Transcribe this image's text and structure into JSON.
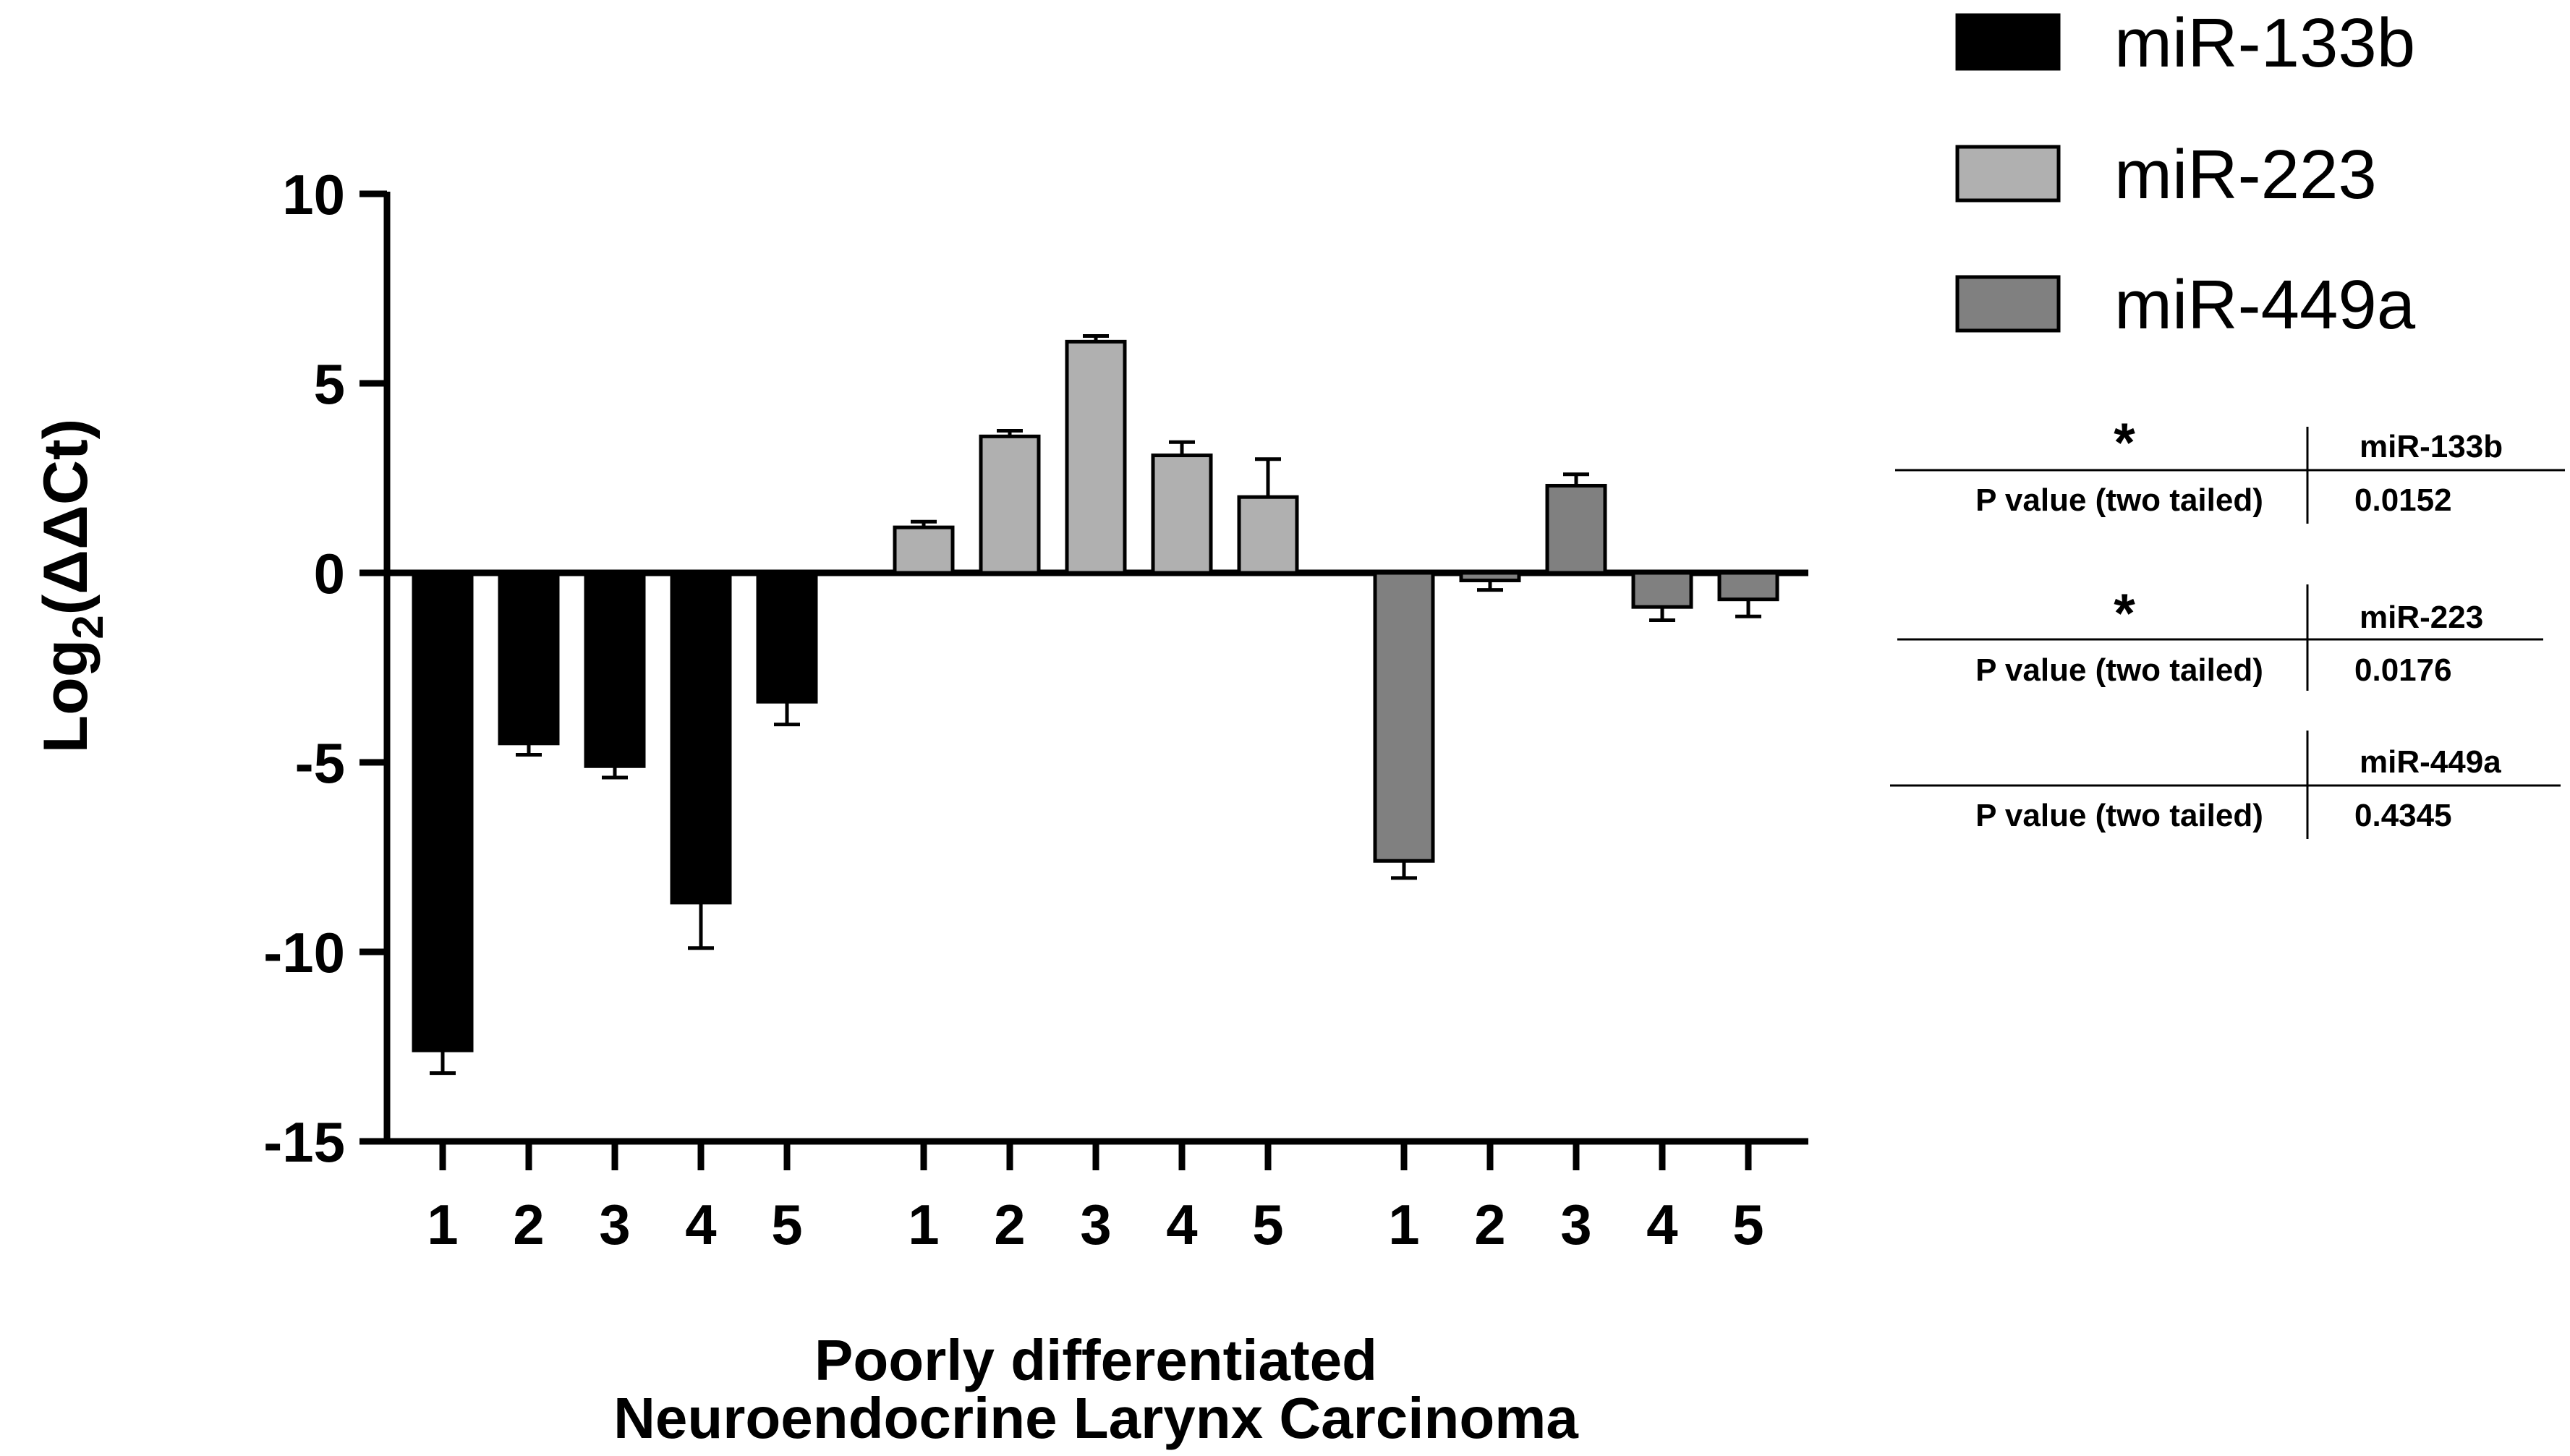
{
  "chart_data": {
    "type": "bar",
    "ylabel": "Log2(ΔΔCt)",
    "ylabel_main": "Log",
    "ylabel_sub": "2",
    "ylabel_rest": "(ΔΔCt)",
    "xlabel_line1": "Poorly differentiated",
    "xlabel_line2": "Neuroendocrine Larynx Carcinoma",
    "ylim": [
      -15,
      10
    ],
    "yticks": [
      10,
      5,
      0,
      -5,
      -10,
      -15
    ],
    "ytick_labels": [
      "10",
      "5",
      "0",
      "-5",
      "-10",
      "-15"
    ],
    "categories": [
      "1",
      "2",
      "3",
      "4",
      "5"
    ],
    "series": [
      {
        "name": "miR-133b",
        "color": "#000000",
        "values": [
          -12.6,
          -4.5,
          -5.1,
          -8.7,
          -3.4
        ],
        "errors": [
          0.6,
          0.3,
          0.3,
          1.2,
          0.6
        ]
      },
      {
        "name": "miR-223",
        "color": "#b0b0b0",
        "values": [
          1.2,
          3.6,
          6.1,
          3.1,
          2.0
        ],
        "errors": [
          0.15,
          0.15,
          0.15,
          0.35,
          1.0
        ]
      },
      {
        "name": "miR-449a",
        "color": "#808080",
        "values": [
          -7.6,
          -0.2,
          2.3,
          -0.9,
          -0.7
        ],
        "errors": [
          0.45,
          0.25,
          0.3,
          0.35,
          0.45
        ]
      }
    ]
  },
  "stats": [
    {
      "star": "*",
      "mirna": "miR-133b",
      "row_label": "P value (two tailed)",
      "p_value": "0.0152"
    },
    {
      "star": "*",
      "mirna": "miR-223",
      "row_label": "P value (two tailed)",
      "p_value": "0.0176"
    },
    {
      "star": "",
      "mirna": "miR-449a",
      "row_label": "P value (two tailed)",
      "p_value": "0.4345"
    }
  ]
}
